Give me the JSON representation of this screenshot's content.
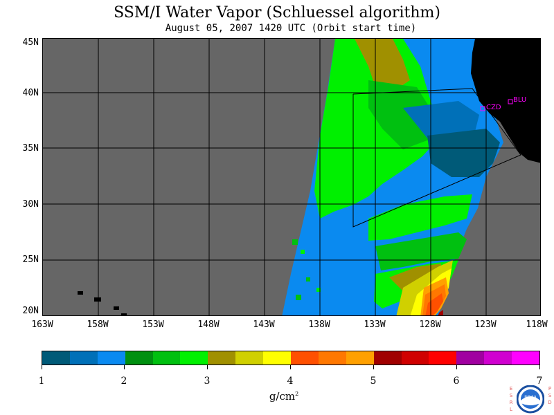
{
  "header": {
    "title": "SSM/I Water Vapor (Schluessel algorithm)",
    "subtitle": "August 05, 2007  1420 UTC  (Orbit start time)"
  },
  "map": {
    "lat_labels": [
      "45N",
      "40N",
      "35N",
      "30N",
      "25N",
      "20N"
    ],
    "lon_labels": [
      "163W",
      "158W",
      "153W",
      "148W",
      "143W",
      "138W",
      "133W",
      "128W",
      "123W",
      "118W"
    ],
    "stations": [
      "CZD",
      "BLU"
    ],
    "colors": {
      "no_data": "#666666",
      "land": "#000000",
      "grid": "#000000",
      "station": "#ff00ff"
    }
  },
  "legend": {
    "labels": [
      "1",
      "2",
      "3",
      "4",
      "5",
      "6",
      "7"
    ],
    "units_text": "g/cm",
    "units_exp": "2",
    "colors": [
      "#005a78",
      "#0070b8",
      "#0a8af0",
      "#009010",
      "#00c010",
      "#00f000",
      "#a09000",
      "#d0d000",
      "#ffff00",
      "#ff5000",
      "#ff7800",
      "#ffa000",
      "#a00000",
      "#d00000",
      "#ff0000",
      "#a000a0",
      "#d000d0",
      "#ff00ff"
    ]
  },
  "logo": {
    "left_letters": [
      "E",
      "S",
      "R",
      "L"
    ],
    "right_letters": [
      "P",
      "S",
      "D"
    ],
    "badge_text": "NOAA",
    "colors": {
      "letters": "#e05c5c",
      "ring": "#1a4fa0",
      "badge": "#2a6fd0"
    }
  }
}
